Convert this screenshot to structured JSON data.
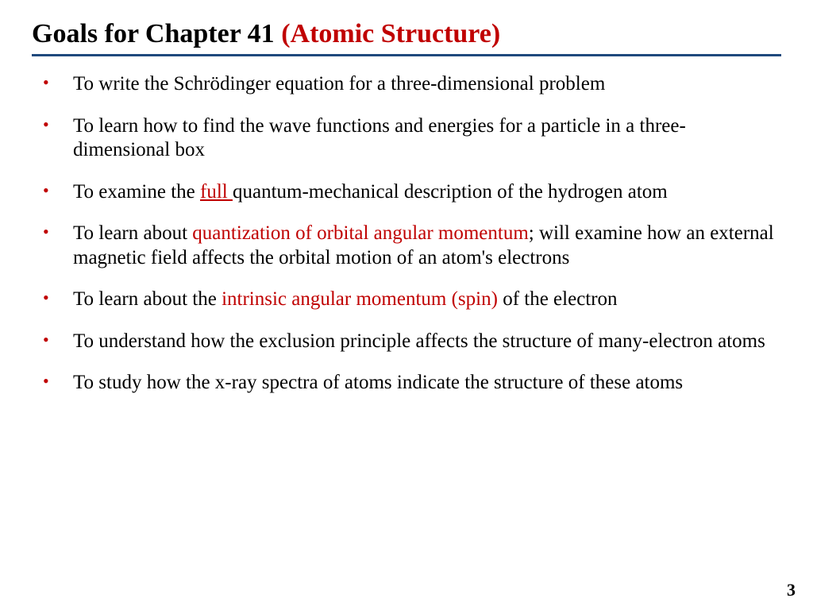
{
  "title": {
    "black": "Goals for Chapter 41 ",
    "red": "(Atomic Structure)",
    "black_color": "#000000",
    "red_color": "#c00000",
    "fontsize": 34,
    "weight": "bold"
  },
  "divider_color": "#1f497d",
  "bullet_color": "#c00000",
  "body_fontsize": 25,
  "body_color": "#000000",
  "highlight_color": "#c00000",
  "bullets": [
    {
      "pre": "To write the Schrödinger equation for a three-dimensional problem"
    },
    {
      "pre": "To learn how to find the wave functions and energies for a particle in a three-dimensional box"
    },
    {
      "pre": "To examine the ",
      "hl": "full ",
      "hl_underline": true,
      "post": "quantum-mechanical description of the hydrogen atom"
    },
    {
      "pre": "To learn about ",
      "hl": "quantization of orbital angular momentum",
      "post": "; will examine how an external magnetic field affects the orbital motion of an atom's electrons"
    },
    {
      "pre": "To learn about the ",
      "hl": "intrinsic angular momentum (spin)",
      "post": " of the electron"
    },
    {
      "pre": "To understand how the exclusion principle affects the structure of many-electron atoms"
    },
    {
      "pre": "To study how the x-ray spectra of atoms indicate the structure of these atoms"
    }
  ],
  "page_number": "3",
  "background_color": "#ffffff"
}
